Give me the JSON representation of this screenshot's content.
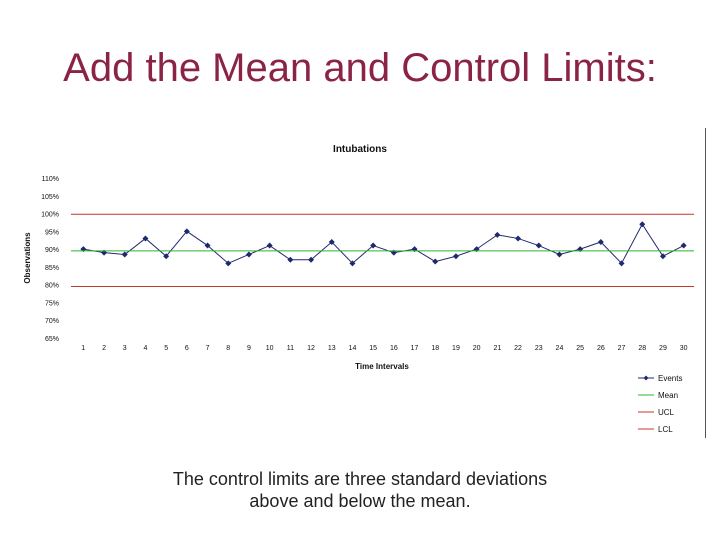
{
  "slide": {
    "title": "Add the Mean and Control Limits:",
    "caption_line1": "The control limits are three standard deviations",
    "caption_line2": "above and below the mean."
  },
  "chart_data": {
    "type": "line",
    "title": "Intubations",
    "xlabel": "Time Intervals",
    "ylabel": "Observations",
    "x": [
      1,
      2,
      3,
      4,
      5,
      6,
      7,
      8,
      9,
      10,
      11,
      12,
      13,
      14,
      15,
      16,
      17,
      18,
      19,
      20,
      21,
      22,
      23,
      24,
      25,
      26,
      27,
      28,
      29,
      30
    ],
    "ylim": [
      0.65,
      1.1
    ],
    "yticks": [
      0.65,
      0.7,
      0.75,
      0.8,
      0.85,
      0.9,
      0.95,
      1.0,
      1.05,
      1.1
    ],
    "ytick_labels": [
      "65%",
      "70%",
      "75%",
      "80%",
      "85%",
      "90%",
      "95%",
      "100%",
      "105%",
      "110%"
    ],
    "grid": false,
    "legend_position": "bottom-right",
    "series": [
      {
        "name": "Events",
        "color": "#1f2a6e",
        "marker": "diamond",
        "values": [
          0.9,
          0.89,
          0.885,
          0.93,
          0.88,
          0.95,
          0.91,
          0.86,
          0.885,
          0.91,
          0.87,
          0.87,
          0.92,
          0.86,
          0.91,
          0.89,
          0.9,
          0.865,
          0.88,
          0.9,
          0.94,
          0.93,
          0.91,
          0.885,
          0.9,
          0.92,
          0.86,
          0.97,
          0.88,
          0.91
        ]
      },
      {
        "name": "Mean",
        "color": "#2db52d",
        "constant": 0.895
      },
      {
        "name": "UCL",
        "color": "#c0392b",
        "constant": 0.998
      },
      {
        "name": "LCL",
        "color": "#c0392b",
        "constant": 0.795
      }
    ]
  }
}
